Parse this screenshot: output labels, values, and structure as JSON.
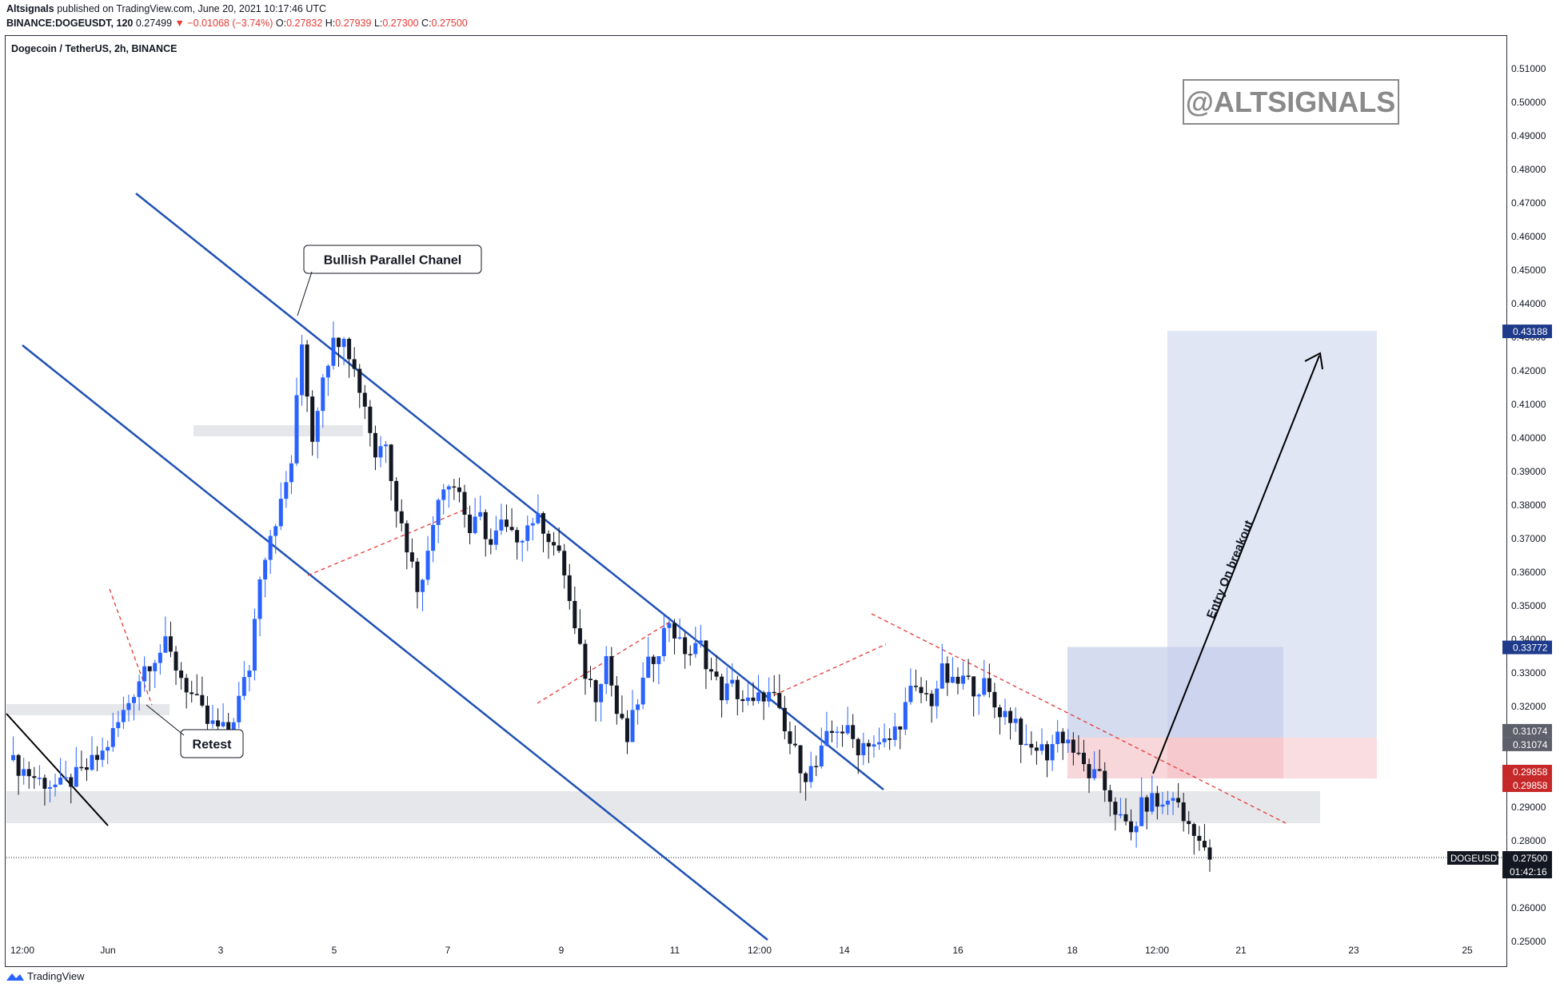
{
  "header": {
    "author": "Altsignals",
    "published": "published on TradingView.com, June 20, 2021 10:17:46 UTC",
    "symbol": "BINANCE:DOGEUSDT, 120",
    "last": "0.27499",
    "change": "▼ −0.01068 (−3.74%)",
    "o_label": "O:",
    "o": "0.27832",
    "h_label": "H:",
    "h": "0.27939",
    "l_label": "L:",
    "l": "0.27300",
    "c_label": "C:",
    "c": "0.27500"
  },
  "pane_title": "Dogecoin / TetherUS, 2h, BINANCE",
  "watermark": "@ALTSIGNALS",
  "annotations": {
    "channel": "Bullish Parallel Chanel",
    "retest": "Retest",
    "entry": "Entry On breakout"
  },
  "footer": {
    "brand": "TradingView"
  },
  "colors": {
    "up": "#2962ff",
    "down": "#131722",
    "channel": "#1e50b4",
    "trend": "#e53935",
    "zone": "#e6e7ea",
    "target": "#d3dbf0",
    "stop": "#f7d2d5"
  },
  "chart_data": {
    "type": "candlestick",
    "title": "Dogecoin / TetherUS, 2h, BINANCE",
    "ylim": [
      0.245,
      0.512
    ],
    "y_ticks": [
      "0.51000",
      "0.50000",
      "0.49000",
      "0.48000",
      "0.47000",
      "0.46000",
      "0.45000",
      "0.44000",
      "0.43000",
      "0.42000",
      "0.41000",
      "0.40000",
      "0.39000",
      "0.38000",
      "0.37000",
      "0.36000",
      "0.35000",
      "0.34000",
      "0.33000",
      "0.32000",
      "0.31000",
      "0.30000",
      "0.29000",
      "0.28000",
      "0.27000",
      "0.26000",
      "0.25000"
    ],
    "x_ticks": [
      "12:00",
      "Jun",
      "3",
      "5",
      "7",
      "9",
      "11",
      "12:00",
      "14",
      "16",
      "18",
      "12:00",
      "21",
      "23",
      "25"
    ],
    "price_labels": [
      {
        "text": "0.43188",
        "value": 0.43188,
        "style": "target"
      },
      {
        "text": "0.33772",
        "value": 0.33772,
        "style": "target"
      },
      {
        "text": "0.31074",
        "value": 0.31074,
        "style": "entry"
      },
      {
        "text": "0.31074",
        "value": 0.31074,
        "style": "entry"
      },
      {
        "text": "0.29858",
        "value": 0.29858,
        "style": "stop"
      },
      {
        "text": "0.29858",
        "value": 0.29858,
        "style": "stop"
      }
    ],
    "last_price": {
      "symbol": "DOGEUSDT",
      "value": "0.27500",
      "countdown": "01:42:16",
      "price": 0.275
    },
    "positions": [
      {
        "entry": 0.31074,
        "target": 0.43188,
        "stop": 0.29858
      },
      {
        "entry": 0.31074,
        "target": 0.33772,
        "stop": 0.29858
      }
    ],
    "close_path": [
      [
        0,
        0.304
      ],
      [
        6,
        0.298
      ],
      [
        10,
        0.296
      ],
      [
        14,
        0.3
      ],
      [
        18,
        0.306
      ],
      [
        22,
        0.318
      ],
      [
        26,
        0.332
      ],
      [
        30,
        0.338
      ],
      [
        34,
        0.326
      ],
      [
        38,
        0.315
      ],
      [
        42,
        0.312
      ],
      [
        46,
        0.332
      ],
      [
        48,
        0.36
      ],
      [
        50,
        0.372
      ],
      [
        52,
        0.38
      ],
      [
        54,
        0.393
      ],
      [
        56,
        0.428
      ],
      [
        58,
        0.4
      ],
      [
        60,
        0.42
      ],
      [
        62,
        0.428
      ],
      [
        64,
        0.432
      ],
      [
        66,
        0.42
      ],
      [
        68,
        0.41
      ],
      [
        70,
        0.395
      ],
      [
        72,
        0.4
      ],
      [
        74,
        0.38
      ],
      [
        76,
        0.368
      ],
      [
        78,
        0.356
      ],
      [
        80,
        0.365
      ],
      [
        82,
        0.384
      ],
      [
        84,
        0.388
      ],
      [
        86,
        0.384
      ],
      [
        88,
        0.372
      ],
      [
        90,
        0.376
      ],
      [
        92,
        0.368
      ],
      [
        94,
        0.374
      ],
      [
        96,
        0.37
      ],
      [
        98,
        0.372
      ],
      [
        100,
        0.376
      ],
      [
        102,
        0.374
      ],
      [
        104,
        0.368
      ],
      [
        106,
        0.36
      ],
      [
        108,
        0.342
      ],
      [
        110,
        0.33
      ],
      [
        112,
        0.324
      ],
      [
        114,
        0.335
      ],
      [
        116,
        0.318
      ],
      [
        118,
        0.31
      ],
      [
        120,
        0.322
      ],
      [
        122,
        0.332
      ],
      [
        124,
        0.338
      ],
      [
        126,
        0.346
      ],
      [
        128,
        0.338
      ],
      [
        130,
        0.336
      ],
      [
        132,
        0.338
      ],
      [
        134,
        0.33
      ],
      [
        136,
        0.324
      ],
      [
        138,
        0.326
      ],
      [
        140,
        0.322
      ],
      [
        142,
        0.32
      ],
      [
        144,
        0.324
      ],
      [
        146,
        0.322
      ],
      [
        148,
        0.312
      ],
      [
        150,
        0.306
      ],
      [
        152,
        0.3
      ],
      [
        154,
        0.302
      ],
      [
        156,
        0.31
      ],
      [
        158,
        0.314
      ],
      [
        160,
        0.312
      ],
      [
        162,
        0.308
      ],
      [
        164,
        0.31
      ],
      [
        166,
        0.308
      ],
      [
        168,
        0.31
      ],
      [
        170,
        0.316
      ],
      [
        172,
        0.324
      ],
      [
        174,
        0.324
      ],
      [
        176,
        0.322
      ],
      [
        178,
        0.33
      ],
      [
        180,
        0.326
      ],
      [
        182,
        0.328
      ],
      [
        184,
        0.326
      ],
      [
        186,
        0.326
      ],
      [
        188,
        0.32
      ],
      [
        190,
        0.318
      ],
      [
        192,
        0.316
      ],
      [
        194,
        0.306
      ],
      [
        196,
        0.308
      ],
      [
        198,
        0.306
      ],
      [
        200,
        0.312
      ],
      [
        202,
        0.31
      ],
      [
        204,
        0.304
      ],
      [
        206,
        0.3
      ],
      [
        208,
        0.298
      ],
      [
        210,
        0.293
      ],
      [
        212,
        0.286
      ],
      [
        214,
        0.282
      ],
      [
        216,
        0.29
      ],
      [
        218,
        0.292
      ],
      [
        220,
        0.29
      ],
      [
        222,
        0.294
      ],
      [
        224,
        0.286
      ],
      [
        226,
        0.284
      ],
      [
        228,
        0.276
      ],
      [
        229,
        0.275
      ]
    ]
  }
}
